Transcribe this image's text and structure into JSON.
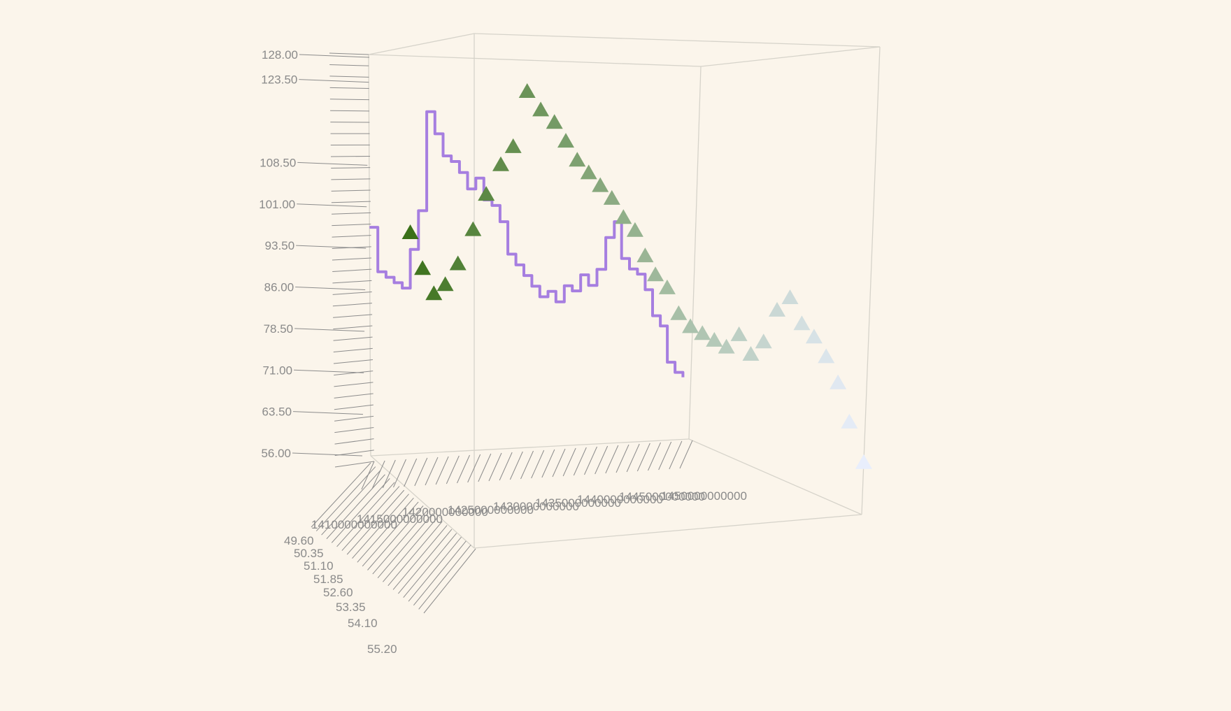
{
  "chart_data": {
    "type": "3d-scatter-line",
    "title": "",
    "axes": {
      "y": {
        "tick_labels": [
          "128.00",
          "123.50",
          "108.50",
          "101.00",
          "93.50",
          "86.00",
          "78.50",
          "71.00",
          "63.50",
          "56.00"
        ],
        "range": [
          56,
          128
        ]
      },
      "x": {
        "tick_labels": [
          "1410000000000",
          "1415000000000",
          "1420000000000",
          "1425000000000",
          "1430000000000",
          "1435000000000",
          "1440000000000",
          "1445000000000",
          "1450000000000"
        ],
        "range": [
          1410000000000,
          1450000000000
        ]
      },
      "z": {
        "tick_labels": [
          "49.60",
          "50.35",
          "51.10",
          "51.85",
          "52.60",
          "53.35",
          "54.10",
          "55.20"
        ],
        "range": [
          49.6,
          55.2
        ]
      }
    },
    "grid": false,
    "legend": "none",
    "series": [
      {
        "type": "line",
        "color": "#a67ee0",
        "x": [
          1410000000000,
          1411000000000,
          1412000000000,
          1413000000000,
          1414000000000,
          1415000000000,
          1416000000000,
          1417000000000,
          1418000000000,
          1419000000000,
          1420000000000,
          1421000000000,
          1422000000000,
          1423000000000,
          1424000000000,
          1425000000000,
          1426000000000,
          1427000000000,
          1428000000000,
          1429000000000,
          1430000000000,
          1431000000000,
          1432000000000,
          1433000000000,
          1434000000000,
          1435000000000,
          1436000000000,
          1437000000000,
          1438000000000,
          1439000000000,
          1440000000000,
          1441000000000,
          1442000000000,
          1443000000000,
          1444000000000,
          1445000000000,
          1446000000000,
          1447000000000,
          1448000000000,
          1449000000000
        ],
        "y": [
          97,
          89,
          88,
          87,
          86,
          93,
          100,
          118,
          114,
          110,
          109,
          107,
          104,
          106,
          102,
          101,
          98,
          92,
          90,
          88,
          86,
          84,
          85,
          83,
          86,
          85,
          88,
          86,
          89,
          95,
          98,
          91,
          89,
          88,
          85,
          80,
          78,
          71,
          69,
          68
        ],
        "z": [
          49.6,
          49.6,
          49.6,
          49.6,
          49.6,
          49.6,
          49.6,
          49.6,
          49.6,
          49.6,
          49.6,
          49.6,
          49.6,
          49.6,
          49.6,
          49.6,
          49.6,
          49.6,
          49.6,
          49.6,
          49.6,
          49.6,
          49.6,
          49.6,
          49.6,
          49.6,
          49.6,
          49.6,
          49.6,
          49.6,
          49.6,
          49.6,
          49.6,
          49.6,
          49.6,
          49.6,
          49.6,
          49.6,
          49.6,
          49.6
        ]
      },
      {
        "type": "scatter",
        "marker": "triangle",
        "color_gradient": [
          "#3a7018",
          "#e8eefc"
        ],
        "x": [
          1415000000000,
          1415500000000,
          1416000000000,
          1416500000000,
          1417000000000,
          1418000000000,
          1419000000000,
          1420000000000,
          1421000000000,
          1422000000000,
          1423000000000,
          1424000000000,
          1425000000000,
          1426000000000,
          1427000000000,
          1428000000000,
          1429000000000,
          1430000000000,
          1431000000000,
          1432000000000,
          1433000000000,
          1434000000000,
          1435000000000,
          1436000000000,
          1437000000000,
          1438000000000,
          1439000000000,
          1440000000000,
          1441000000000,
          1442000000000,
          1443000000000,
          1444000000000,
          1445000000000,
          1446000000000,
          1447000000000,
          1448000000000,
          1449000000000,
          1450000000000
        ],
        "y": [
          96,
          90,
          86,
          88,
          92,
          98,
          104,
          109,
          112,
          121,
          118,
          116,
          113,
          110,
          108,
          106,
          104,
          101,
          99,
          95,
          92,
          90,
          86,
          84,
          83,
          82,
          81,
          83,
          80,
          82,
          87,
          89,
          85,
          83,
          80,
          76,
          70,
          64
        ],
        "z": [
          49.6,
          50.0,
          50.35,
          50.7,
          51.1,
          51.4,
          51.6,
          51.85,
          52.0,
          52.2,
          52.4,
          52.6,
          52.7,
          52.8,
          52.9,
          53.0,
          53.1,
          53.2,
          53.3,
          53.35,
          53.4,
          53.5,
          53.6,
          53.7,
          53.8,
          53.9,
          54.0,
          54.1,
          54.2,
          54.3,
          54.4,
          54.5,
          54.6,
          54.7,
          54.8,
          54.9,
          55.0,
          55.2
        ]
      }
    ]
  }
}
